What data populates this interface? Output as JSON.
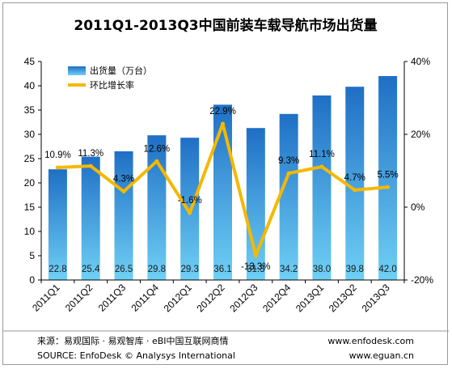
{
  "chart_data": {
    "type": "bar",
    "title": "2011Q1-2013Q3中国前装车载导航市场出货量",
    "categories": [
      "2011Q1",
      "2011Q2",
      "2011Q3",
      "2011Q4",
      "2012Q1",
      "2012Q2",
      "2012Q3",
      "2012Q4",
      "2013Q1",
      "2013Q2",
      "2013Q3"
    ],
    "series": [
      {
        "name": "出货量（万台）",
        "type": "bar",
        "axis": "left",
        "values": [
          22.8,
          25.4,
          26.5,
          29.8,
          29.3,
          36.1,
          31.3,
          34.2,
          38.0,
          39.8,
          42.0
        ],
        "labels": [
          "22.8",
          "25.4",
          "26.5",
          "29.8",
          "29.3",
          "36.1",
          "31.3",
          "34.2",
          "38.0",
          "39.8",
          "42.0"
        ]
      },
      {
        "name": "环比增长率",
        "type": "line",
        "axis": "right",
        "values": [
          10.9,
          11.3,
          4.3,
          12.6,
          -1.6,
          22.9,
          -13.3,
          9.3,
          11.1,
          4.7,
          5.5
        ],
        "labels": [
          "10.9%",
          "11.3%",
          "4.3%",
          "12.6%",
          "-1.6%",
          "22.9%",
          "-13.3%",
          "9.3%",
          "11.1%",
          "4.7%",
          "5.5%"
        ]
      }
    ],
    "ylim_left": [
      0,
      45
    ],
    "yticks_left": [
      "0",
      "5",
      "10",
      "15",
      "20",
      "25",
      "30",
      "35",
      "40",
      "45"
    ],
    "ylim_right": [
      -20,
      40
    ],
    "yticks_right": [
      "-20%",
      "0%",
      "20%",
      "40%"
    ],
    "legend_position": "top-left",
    "grid": false,
    "colors": {
      "bar_top": "#1f6fc5",
      "bar_bottom": "#6fd0f5",
      "line": "#f5b800"
    }
  },
  "footer": {
    "source_cn": "来源：易观国际 · 易观智库 · eBI中国互联网商情",
    "source_en": "SOURCE: EnfoDesk © Analysys International",
    "url1": "www.enfodesk.com",
    "url2": "www.eguan.cn"
  }
}
